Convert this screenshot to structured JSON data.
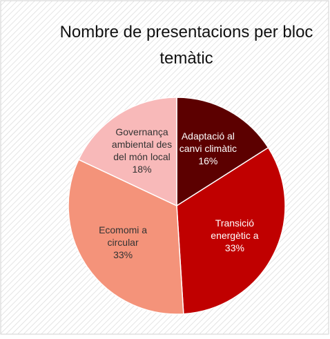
{
  "chart_data": {
    "type": "pie",
    "title": "Nombre de presentacions per bloc temàtic",
    "categories": [
      "Adaptació al canvi climàtic",
      "Transició energètic a",
      "Ecomomi a circular",
      "Governança ambiental des del món local"
    ],
    "values": [
      16,
      33,
      33,
      18
    ],
    "value_labels": [
      "16%",
      "33%",
      "33%",
      "18%"
    ],
    "colors": [
      "#5c0000",
      "#c00000",
      "#f4937a",
      "#f8b9b9"
    ]
  }
}
